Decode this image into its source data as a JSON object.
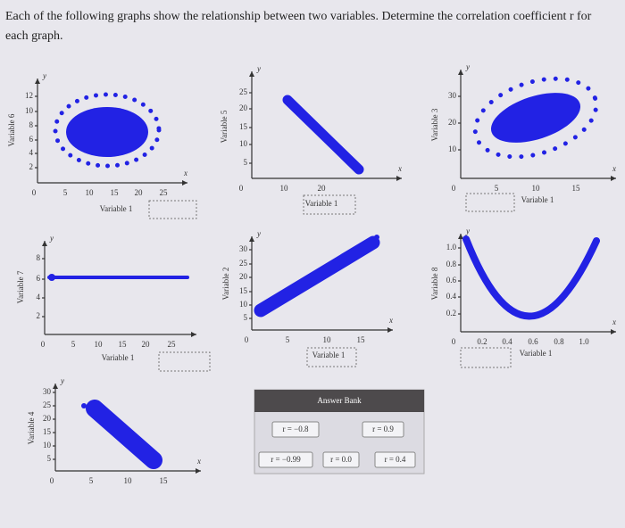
{
  "instruction": "Each of the following graphs show the relationship between two variables. Determine the correlation coefficient r for each graph.",
  "plots": [
    {
      "y_letter": "y",
      "x_letter": "x",
      "y_label": "Variable 6",
      "x_label": "Variable 1",
      "yticks": [
        "2",
        "4",
        "6",
        "8",
        "10",
        "12"
      ],
      "xticks": [
        "0",
        "5",
        "10",
        "15",
        "20",
        "25"
      ]
    },
    {
      "y_letter": "y",
      "x_letter": "x",
      "y_label": "Variable 5",
      "x_label": "Variable 1",
      "yticks": [
        "5",
        "10",
        "15",
        "20",
        "25"
      ],
      "xticks": [
        "0",
        "10",
        "20"
      ]
    },
    {
      "y_letter": "y",
      "x_letter": "x",
      "y_label": "Variable 3",
      "x_label": "Variable 1",
      "yticks": [
        "10",
        "20",
        "30"
      ],
      "xticks": [
        "0",
        "5",
        "10",
        "15"
      ]
    },
    {
      "y_letter": "y",
      "y_label": "Variable 7",
      "x_label": "Variable 1",
      "yticks": [
        "2",
        "4",
        "6",
        "8"
      ],
      "xticks": [
        "0",
        "5",
        "10",
        "15",
        "20",
        "25"
      ]
    },
    {
      "y_letter": "y",
      "x_letter": "x",
      "y_label": "Variable 2",
      "x_label": "Variable 1",
      "yticks": [
        "5",
        "10",
        "15",
        "20",
        "25",
        "30"
      ],
      "xticks": [
        "0",
        "5",
        "10",
        "15"
      ]
    },
    {
      "y_letter": "y",
      "x_letter": "x",
      "y_label": "Variable 8",
      "x_label": "Variable 1",
      "yticks": [
        "0.2",
        "0.4",
        "0.6",
        "0.8",
        "1.0"
      ],
      "xticks": [
        "0",
        "0.2",
        "0.4",
        "0.6",
        "0.8",
        "1.0"
      ]
    },
    {
      "y_letter": "y",
      "x_letter": "x",
      "y_label": "Variable 4",
      "yticks": [
        "5",
        "10",
        "15",
        "20",
        "25",
        "30"
      ],
      "xticks": [
        "0",
        "5",
        "10",
        "15"
      ]
    }
  ],
  "answer_bank": {
    "title": "Answer Bank",
    "options": [
      "r = −0.8",
      "r = 0.9",
      "r = −0.99",
      "r = 0.0",
      "r = 0.4"
    ]
  }
}
